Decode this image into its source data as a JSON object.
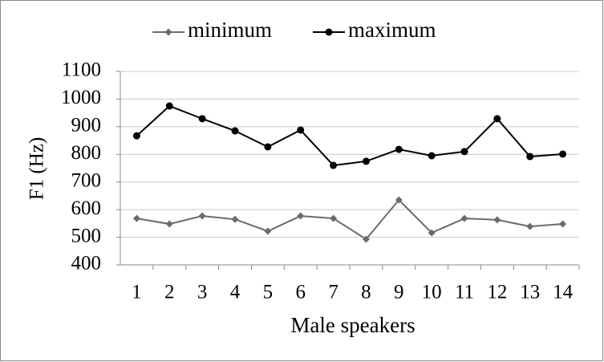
{
  "chart_data": {
    "type": "line",
    "x_label": "Male speakers",
    "y_label": "F1 (Hz)",
    "categories": [
      "1",
      "2",
      "3",
      "4",
      "5",
      "6",
      "7",
      "8",
      "9",
      "10",
      "11",
      "12",
      "13",
      "14"
    ],
    "series": [
      {
        "name": "minimum",
        "color": "#6b6b6b",
        "marker": "diamond",
        "values": [
          568,
          548,
          577,
          565,
          522,
          577,
          568,
          493,
          635,
          516,
          568,
          563,
          539,
          548
        ]
      },
      {
        "name": "maximum",
        "color": "#000000",
        "marker": "circle",
        "values": [
          867,
          975,
          929,
          885,
          827,
          888,
          760,
          775,
          818,
          795,
          810,
          929,
          792,
          801
        ]
      }
    ],
    "ylim": [
      400,
      1100
    ],
    "yticks": [
      400,
      500,
      600,
      700,
      800,
      900,
      1000,
      1100
    ],
    "grid": true,
    "legend": "top"
  }
}
